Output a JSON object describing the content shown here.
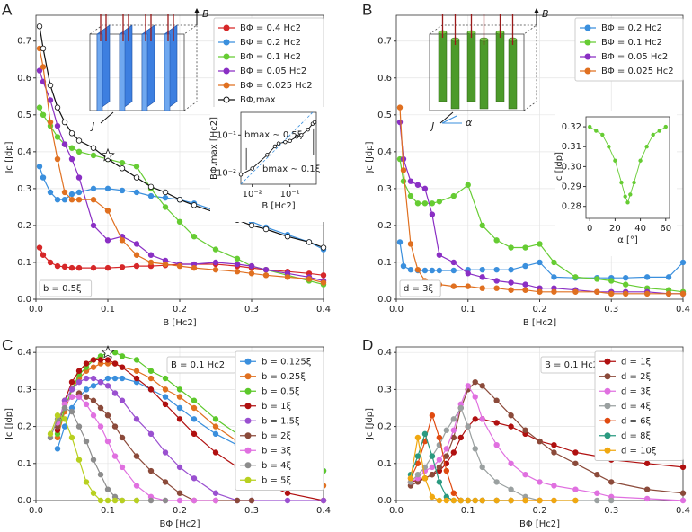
{
  "chart_data": [
    {
      "type": "line",
      "panel": "A",
      "xlabel": "B [Hc2]",
      "ylabel": "Jc [Jdp]",
      "note": [
        "b = 0.5ξ"
      ],
      "grid": true,
      "illustration": {
        "field": "B",
        "current": "J",
        "style": "slabs",
        "color": "#3d7fe0"
      },
      "xlim": [
        0,
        0.4
      ],
      "ylim": [
        0,
        0.77
      ],
      "xticks": [
        {
          "value": 0,
          "label": "0.0"
        },
        0.1,
        0.2,
        0.3,
        0.4
      ],
      "yticks": [
        {
          "value": 0,
          "label": "0.0"
        },
        0.1,
        0.2,
        0.3,
        0.4,
        0.5,
        0.6,
        0.7
      ],
      "x": [
        0.005,
        0.01,
        0.02,
        0.03,
        0.04,
        0.05,
        0.06,
        0.08,
        0.1,
        0.12,
        0.14,
        0.16,
        0.18,
        0.2,
        0.22,
        0.25,
        0.28,
        0.3,
        0.32,
        0.35,
        0.38,
        0.4
      ],
      "series": [
        {
          "name": "BΦ = 0.4 Hc2",
          "color": "#d62728",
          "values": [
            0.14,
            0.12,
            0.1,
            0.09,
            0.088,
            0.085,
            0.085,
            0.085,
            0.085,
            0.087,
            0.09,
            0.09,
            0.092,
            0.095,
            0.095,
            0.095,
            0.09,
            0.085,
            0.08,
            0.075,
            0.07,
            0.065
          ]
        },
        {
          "name": "BΦ = 0.2 Hc2",
          "color": "#3a8fdd",
          "values": [
            0.36,
            0.33,
            0.29,
            0.27,
            0.27,
            0.285,
            0.29,
            0.3,
            0.3,
            0.295,
            0.29,
            0.28,
            0.275,
            0.27,
            0.26,
            0.24,
            0.22,
            0.21,
            0.195,
            0.175,
            0.155,
            0.135
          ]
        },
        {
          "name": "BΦ = 0.1 Hc2",
          "color": "#66cc33",
          "values": [
            0.52,
            0.5,
            0.47,
            0.44,
            0.42,
            0.41,
            0.4,
            0.39,
            0.38,
            0.37,
            0.36,
            0.3,
            0.25,
            0.21,
            0.17,
            0.135,
            0.11,
            0.09,
            0.08,
            0.065,
            0.05,
            0.04
          ]
        },
        {
          "name": "BΦ = 0.05 Hc2",
          "color": "#8a2fc4",
          "values": [
            0.62,
            0.59,
            0.54,
            0.47,
            0.42,
            0.38,
            0.33,
            0.2,
            0.16,
            0.17,
            0.15,
            0.12,
            0.105,
            0.095,
            0.095,
            0.1,
            0.095,
            0.09,
            0.08,
            0.07,
            0.06,
            0.05
          ]
        },
        {
          "name": "BΦ = 0.025 Hc2",
          "color": "#e07020",
          "values": [
            0.68,
            0.63,
            0.48,
            0.38,
            0.29,
            0.27,
            0.27,
            0.27,
            0.24,
            0.16,
            0.12,
            0.1,
            0.095,
            0.09,
            0.085,
            0.08,
            0.075,
            0.07,
            0.065,
            0.06,
            0.055,
            0.045
          ]
        },
        {
          "name": "BΦ,max",
          "color": "#111111",
          "marker_face": "#ffffff",
          "values": [
            0.74,
            0.68,
            0.58,
            0.52,
            0.48,
            0.45,
            0.43,
            0.41,
            0.38,
            0.355,
            0.33,
            0.305,
            0.29,
            0.27,
            0.255,
            0.235,
            0.215,
            0.2,
            0.19,
            0.17,
            0.155,
            0.14
          ]
        }
      ],
      "star": {
        "x": 0.1,
        "y": 0.39
      }
    },
    {
      "type": "line",
      "xlabel": "B [Hc2]",
      "ylabel": "BΦ,max [Hc2]",
      "note": [
        "bmax ∼ 0.5ξ",
        "bmax ∼ 0.1ξ"
      ],
      "xlog": true,
      "ylog": true,
      "diagonal": true,
      "xlim": [
        0.005,
        0.5
      ],
      "ylim": [
        0.005,
        0.4
      ],
      "xticks": [
        {
          "value": 0.01,
          "label": "10⁻²"
        },
        {
          "value": 0.1,
          "label": "10⁻¹"
        }
      ],
      "yticks": [
        {
          "value": 0.01,
          "label": "10⁻²"
        },
        {
          "value": 0.1,
          "label": "10⁻¹"
        }
      ],
      "x": [
        0.005,
        0.01,
        0.025,
        0.04,
        0.05,
        0.075,
        0.1,
        0.15,
        0.2,
        0.3,
        0.4,
        0.45
      ],
      "series": [
        {
          "color": "#111111",
          "marker_face": "#ffffff",
          "values": [
            0.009,
            0.013,
            0.03,
            0.05,
            0.06,
            0.065,
            0.07,
            0.09,
            0.1,
            0.14,
            0.2,
            0.22
          ]
        }
      ]
    },
    {
      "type": "line",
      "panel": "B",
      "xlabel": "B [Hc2]",
      "ylabel": "Jc [Jdp]",
      "note": [
        "d = 3ξ"
      ],
      "grid": true,
      "illustration": {
        "field": "B",
        "current": "J",
        "angle": "α",
        "style": "cylinders",
        "color": "#4c9a2a"
      },
      "xlim": [
        0,
        0.4
      ],
      "ylim": [
        0,
        0.77
      ],
      "xticks": [
        {
          "value": 0,
          "label": "0.0"
        },
        0.1,
        0.2,
        0.3,
        0.4
      ],
      "yticks": [
        {
          "value": 0,
          "label": "0.0"
        },
        0.1,
        0.2,
        0.3,
        0.4,
        0.5,
        0.6,
        0.7
      ],
      "x": [
        0.005,
        0.01,
        0.02,
        0.03,
        0.04,
        0.05,
        0.06,
        0.08,
        0.1,
        0.12,
        0.14,
        0.16,
        0.18,
        0.2,
        0.22,
        0.25,
        0.28,
        0.3,
        0.32,
        0.35,
        0.38,
        0.4
      ],
      "series": [
        {
          "name": "BΦ = 0.2 Hc2",
          "color": "#3a8fdd",
          "values": [
            0.155,
            0.09,
            0.08,
            0.078,
            0.078,
            0.078,
            0.078,
            0.078,
            0.08,
            0.08,
            0.08,
            0.08,
            0.09,
            0.1,
            0.06,
            0.058,
            0.058,
            0.058,
            0.058,
            0.06,
            0.06,
            0.1
          ]
        },
        {
          "name": "BΦ = 0.1 Hc2",
          "color": "#66cc33",
          "values": [
            0.38,
            0.32,
            0.28,
            0.26,
            0.26,
            0.26,
            0.265,
            0.28,
            0.31,
            0.2,
            0.16,
            0.14,
            0.14,
            0.15,
            0.1,
            0.06,
            0.055,
            0.05,
            0.04,
            0.03,
            0.025,
            0.02
          ]
        },
        {
          "name": "BΦ = 0.05 Hc2",
          "color": "#8a2fc4",
          "values": [
            0.48,
            0.38,
            0.32,
            0.31,
            0.3,
            0.23,
            0.12,
            0.1,
            0.07,
            0.06,
            0.05,
            0.045,
            0.04,
            0.03,
            0.03,
            0.025,
            0.02,
            0.02,
            0.02,
            0.02,
            0.015,
            0.015
          ]
        },
        {
          "name": "BΦ = 0.025 Hc2",
          "color": "#e07020",
          "values": [
            0.52,
            0.35,
            0.15,
            0.08,
            0.05,
            0.045,
            0.04,
            0.035,
            0.035,
            0.03,
            0.03,
            0.025,
            0.025,
            0.02,
            0.02,
            0.02,
            0.02,
            0.015,
            0.015,
            0.015,
            0.015,
            0.015
          ]
        }
      ]
    },
    {
      "type": "line",
      "xlabel": "α [°]",
      "ylabel": "Jc [Jdp]",
      "xlim": [
        -3,
        63
      ],
      "ylim": [
        0.274,
        0.325
      ],
      "xticks": [
        0,
        20,
        40,
        60
      ],
      "yticks": [
        0.28,
        0.29,
        {
          "value": 0.3,
          "label": "0.30"
        },
        0.31,
        0.32
      ],
      "x": [
        0,
        5,
        10,
        15,
        20,
        25,
        28,
        30,
        32,
        35,
        40,
        45,
        50,
        55,
        60
      ],
      "series": [
        {
          "color": "#66cc33",
          "values": [
            0.32,
            0.318,
            0.316,
            0.31,
            0.303,
            0.292,
            0.285,
            0.282,
            0.286,
            0.292,
            0.303,
            0.31,
            0.316,
            0.318,
            0.32
          ]
        }
      ]
    },
    {
      "type": "line",
      "panel": "C",
      "xlabel": "BΦ [Hc2]",
      "ylabel": "Jc [Jdp]",
      "note": [
        "B = 0.1 Hc2"
      ],
      "grid": true,
      "xlim": [
        0,
        0.4
      ],
      "ylim": [
        0,
        0.415
      ],
      "xticks": [
        {
          "value": 0,
          "label": "0.0"
        },
        0.1,
        0.2,
        0.3,
        0.4
      ],
      "yticks": [
        {
          "value": 0,
          "label": "0.0"
        },
        0.1,
        0.2,
        0.3,
        0.4
      ],
      "x": [
        0.02,
        0.03,
        0.04,
        0.05,
        0.06,
        0.07,
        0.08,
        0.09,
        0.1,
        0.11,
        0.12,
        0.14,
        0.16,
        0.18,
        0.2,
        0.22,
        0.25,
        0.28,
        0.3,
        0.35,
        0.4
      ],
      "series": [
        {
          "name": "b = 0.125ξ",
          "color": "#3a8fdd",
          "values": [
            null,
            0.14,
            0.2,
            0.25,
            0.28,
            0.3,
            0.31,
            0.32,
            0.33,
            0.33,
            0.33,
            0.32,
            0.3,
            0.28,
            0.25,
            0.22,
            0.18,
            0.15,
            0.13,
            0.1,
            0.08
          ]
        },
        {
          "name": "b = 0.25ξ",
          "color": "#e07020",
          "values": [
            null,
            0.17,
            0.24,
            0.3,
            0.33,
            0.35,
            0.36,
            0.37,
            0.37,
            0.37,
            0.36,
            0.35,
            0.33,
            0.3,
            0.28,
            0.25,
            0.2,
            0.16,
            0.13,
            0.08,
            0.04
          ]
        },
        {
          "name": "b = 0.5ξ",
          "color": "#5cc82a",
          "values": [
            null,
            0.18,
            0.25,
            0.3,
            0.34,
            0.36,
            0.38,
            0.39,
            0.4,
            0.4,
            0.39,
            0.38,
            0.35,
            0.33,
            0.3,
            0.27,
            0.22,
            0.18,
            0.15,
            0.1,
            0.08
          ]
        },
        {
          "name": "b = 1ξ",
          "color": "#b01010",
          "values": [
            null,
            0.19,
            0.27,
            0.32,
            0.35,
            0.37,
            0.38,
            0.38,
            0.38,
            0.37,
            0.36,
            0.33,
            0.3,
            0.26,
            0.22,
            0.18,
            0.13,
            0.09,
            0.06,
            0.02,
            0
          ]
        },
        {
          "name": "b = 1.5ξ",
          "color": "#9a50d0",
          "values": [
            null,
            0.2,
            0.27,
            0.3,
            0.32,
            0.33,
            0.33,
            0.32,
            0.31,
            0.29,
            0.27,
            0.22,
            0.18,
            0.13,
            0.09,
            0.06,
            0.02,
            0,
            0,
            0,
            0
          ]
        },
        {
          "name": "b = 2ξ",
          "color": "#8b4a3a",
          "values": [
            null,
            0.2,
            0.26,
            0.28,
            0.29,
            0.28,
            0.27,
            0.25,
            0.23,
            0.2,
            0.17,
            0.12,
            0.08,
            0.05,
            0.02,
            0,
            0,
            0,
            0,
            null,
            null
          ]
        },
        {
          "name": "b = 3ξ",
          "color": "#e070e0",
          "values": [
            null,
            0.21,
            0.26,
            0.28,
            0.28,
            0.26,
            0.23,
            0.2,
            0.16,
            0.12,
            0.09,
            0.04,
            0.01,
            0,
            0,
            0,
            0,
            null,
            null,
            null,
            null
          ]
        },
        {
          "name": "b = 4ξ",
          "color": "#8c8c8c",
          "values": [
            0.17,
            0.22,
            0.25,
            0.24,
            0.2,
            0.16,
            0.11,
            0.07,
            0.03,
            0.01,
            0,
            0,
            0,
            0,
            null,
            null,
            null,
            null,
            null,
            null,
            null
          ]
        },
        {
          "name": "b = 5ξ",
          "color": "#b8d020",
          "values": [
            0.18,
            0.23,
            0.22,
            0.17,
            0.11,
            0.05,
            0.02,
            0,
            0,
            0,
            0,
            0,
            null,
            null,
            null,
            null,
            null,
            null,
            null,
            null,
            null
          ]
        }
      ],
      "star": {
        "x": 0.1,
        "y": 0.4
      }
    },
    {
      "type": "line",
      "panel": "D",
      "xlabel": "BΦ [Hc2]",
      "ylabel": "Jc [Jdp]",
      "note": [
        "B = 0.1 Hc2"
      ],
      "grid": true,
      "xlim": [
        0,
        0.4
      ],
      "ylim": [
        0,
        0.415
      ],
      "xticks": [
        {
          "value": 0,
          "label": "0.0"
        },
        0.1,
        0.2,
        0.3,
        0.4
      ],
      "yticks": [
        {
          "value": 0,
          "label": "0.0"
        },
        0.1,
        0.2,
        0.3,
        0.4
      ],
      "x": [
        0.02,
        0.03,
        0.04,
        0.05,
        0.06,
        0.07,
        0.08,
        0.09,
        0.1,
        0.11,
        0.12,
        0.14,
        0.16,
        0.18,
        0.2,
        0.22,
        0.25,
        0.28,
        0.3,
        0.35,
        0.4
      ],
      "series": [
        {
          "name": "d = 1ξ",
          "color": "#b01010",
          "values": [
            0.05,
            0.055,
            0.06,
            0.07,
            0.08,
            0.1,
            0.13,
            0.17,
            0.2,
            0.22,
            0.22,
            0.21,
            0.2,
            0.18,
            0.16,
            0.15,
            0.13,
            0.12,
            0.11,
            0.1,
            0.09
          ]
        },
        {
          "name": "d = 2ξ",
          "color": "#8b4a3a",
          "values": [
            0.04,
            0.05,
            0.06,
            0.07,
            0.09,
            0.12,
            0.17,
            0.25,
            0.3,
            0.32,
            0.31,
            0.27,
            0.23,
            0.19,
            0.16,
            0.13,
            0.1,
            0.07,
            0.05,
            0.03,
            0.02
          ]
        },
        {
          "name": "d = 3ξ",
          "color": "#e070e0",
          "values": [
            0.05,
            0.06,
            0.08,
            0.09,
            0.11,
            0.14,
            0.19,
            0.26,
            0.31,
            0.28,
            0.22,
            0.15,
            0.1,
            0.07,
            0.05,
            0.04,
            0.03,
            0.02,
            0.01,
            0.005,
            0
          ]
        },
        {
          "name": "d = 4ξ",
          "color": "#9aa0a0",
          "values": [
            0.05,
            0.07,
            0.09,
            0.12,
            0.15,
            0.19,
            0.22,
            0.25,
            0.2,
            0.14,
            0.09,
            0.05,
            0.03,
            0.01,
            0,
            0,
            0,
            0,
            0,
            null,
            null
          ]
        },
        {
          "name": "d = 6ξ",
          "color": "#e04a10",
          "values": [
            0.06,
            0.1,
            0.16,
            0.23,
            0.17,
            0.08,
            0.02,
            0,
            0,
            0,
            0,
            0,
            0,
            0,
            0,
            0,
            null,
            null,
            null,
            null,
            null
          ]
        },
        {
          "name": "d = 8ξ",
          "color": "#2a9a80",
          "values": [
            0.07,
            0.12,
            0.18,
            0.12,
            0.05,
            0.01,
            0,
            0,
            0,
            0,
            0,
            0,
            0,
            null,
            null,
            null,
            null,
            null,
            null,
            null,
            null
          ]
        },
        {
          "name": "d = 10ξ",
          "color": "#f0a810",
          "values": [
            0.06,
            0.17,
            0.06,
            0.01,
            0,
            0,
            0,
            0,
            0,
            0,
            0,
            0,
            0,
            0,
            0,
            0,
            0,
            null,
            null,
            null,
            null
          ]
        }
      ]
    }
  ]
}
